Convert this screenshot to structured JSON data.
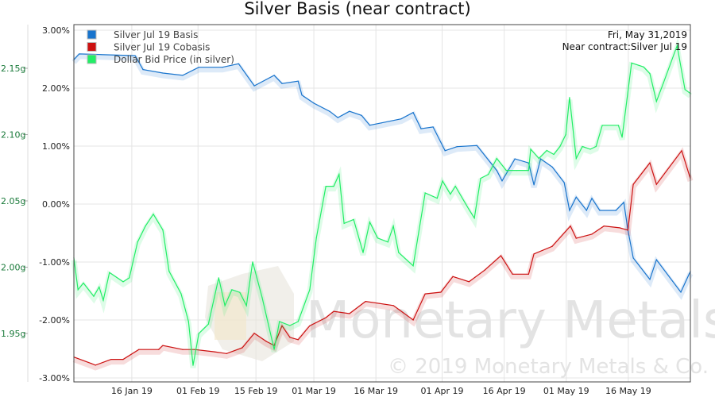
{
  "chart_data": {
    "type": "line",
    "title": "Silver Basis (near contract)",
    "annotation": [
      "Fri, May 31,2019",
      "Near contract:Silver Jul 19"
    ],
    "watermark": "Monetary Metals",
    "copyright": "© 2019 Monetary Metals & Co.",
    "x_unit": "day_of_year_2019",
    "xlim": [
      2,
      151
    ],
    "x_ticks": [
      {
        "day": 16,
        "label": "16 Jan 19"
      },
      {
        "day": 32,
        "label": "01 Feb 19"
      },
      {
        "day": 46,
        "label": "15 Feb 19"
      },
      {
        "day": 60,
        "label": "01 Mar 19"
      },
      {
        "day": 75,
        "label": "16 Mar 19"
      },
      {
        "day": 91,
        "label": "01 Apr 19"
      },
      {
        "day": 106,
        "label": "16 Apr 19"
      },
      {
        "day": 121,
        "label": "01 May 19"
      },
      {
        "day": 136,
        "label": "16 May 19"
      }
    ],
    "y_pct": {
      "ylim": [
        -3,
        3
      ],
      "ticks": [
        3,
        2,
        1,
        0,
        -1,
        -2,
        -3
      ],
      "labels": [
        "3.00%",
        "2.00%",
        "1.00%",
        "0.00%",
        "-1.00%",
        "-2.00%",
        "-3.00%"
      ]
    },
    "y_grams": {
      "ylim": [
        1.9232,
        2.1817
      ],
      "ticks": [
        2.15,
        2.1,
        2.05,
        2.0,
        1.95
      ],
      "labels": [
        "2.15g",
        "2.10g",
        "2.05g",
        "2.00g",
        "1.95g"
      ]
    },
    "legend_position": "top-left",
    "series": [
      {
        "name": "Silver Jul 19 Basis",
        "color": "#1874cd",
        "axis": "pct",
        "points": [
          [
            2,
            2.49
          ],
          [
            3.3,
            2.59
          ],
          [
            16.8,
            2.56
          ],
          [
            18.7,
            2.32
          ],
          [
            23.5,
            2.26
          ],
          [
            28.3,
            2.22
          ],
          [
            32.2,
            2.36
          ],
          [
            37.9,
            2.36
          ],
          [
            41.8,
            2.42
          ],
          [
            45.6,
            2.04
          ],
          [
            48.5,
            2.15
          ],
          [
            50.4,
            2.22
          ],
          [
            52.3,
            2.08
          ],
          [
            56.2,
            2.12
          ],
          [
            57.1,
            1.88
          ],
          [
            60,
            1.74
          ],
          [
            63.8,
            1.6
          ],
          [
            65.8,
            1.49
          ],
          [
            68.6,
            1.6
          ],
          [
            71.5,
            1.53
          ],
          [
            73.5,
            1.36
          ],
          [
            76.3,
            1.4
          ],
          [
            81.1,
            1.47
          ],
          [
            84,
            1.58
          ],
          [
            85.9,
            1.3
          ],
          [
            88.8,
            1.33
          ],
          [
            91.7,
            0.92
          ],
          [
            94.6,
            0.99
          ],
          [
            99.4,
            1.01
          ],
          [
            101.3,
            0.84
          ],
          [
            104.2,
            0.58
          ],
          [
            105.5,
            0.4
          ],
          [
            108.6,
            0.78
          ],
          [
            111.9,
            0.71
          ],
          [
            113.2,
            0.33
          ],
          [
            114.8,
            0.78
          ],
          [
            117.6,
            0.64
          ],
          [
            120.5,
            0.37
          ],
          [
            121.8,
            -0.11
          ],
          [
            123.4,
            0.12
          ],
          [
            125.9,
            -0.11
          ],
          [
            127.2,
            0.1
          ],
          [
            129.1,
            -0.11
          ],
          [
            133,
            -0.11
          ],
          [
            134.9,
            0.03
          ],
          [
            135.9,
            -0.45
          ],
          [
            137.2,
            -0.93
          ],
          [
            141.2,
            -1.3
          ],
          [
            142.8,
            -0.96
          ],
          [
            148.7,
            -1.52
          ],
          [
            151,
            -1.16
          ]
        ]
      },
      {
        "name": "Silver Jul 19 Cobasis",
        "color": "#cc1111",
        "axis": "pct",
        "points": [
          [
            2,
            -2.64
          ],
          [
            6.2,
            -2.75
          ],
          [
            7.2,
            -2.78
          ],
          [
            11,
            -2.68
          ],
          [
            13.9,
            -2.68
          ],
          [
            17.7,
            -2.51
          ],
          [
            22.5,
            -2.51
          ],
          [
            23.5,
            -2.44
          ],
          [
            28.3,
            -2.51
          ],
          [
            31.2,
            -2.51
          ],
          [
            36,
            -2.55
          ],
          [
            38.9,
            -2.58
          ],
          [
            42.7,
            -2.48
          ],
          [
            45.6,
            -2.23
          ],
          [
            48.5,
            -2.37
          ],
          [
            50.4,
            -2.44
          ],
          [
            52.3,
            -2.1
          ],
          [
            54.2,
            -2.3
          ],
          [
            56.2,
            -2.34
          ],
          [
            59,
            -2.1
          ],
          [
            62.9,
            -1.96
          ],
          [
            64.8,
            -1.85
          ],
          [
            68.6,
            -1.89
          ],
          [
            72.5,
            -1.68
          ],
          [
            79.2,
            -1.75
          ],
          [
            84,
            -2.0
          ],
          [
            86.9,
            -1.55
          ],
          [
            90.7,
            -1.52
          ],
          [
            93.6,
            -1.25
          ],
          [
            97.5,
            -1.34
          ],
          [
            101.3,
            -1.14
          ],
          [
            105.2,
            -0.89
          ],
          [
            108,
            -1.21
          ],
          [
            111.9,
            -1.21
          ],
          [
            113.2,
            -0.86
          ],
          [
            117.6,
            -0.73
          ],
          [
            122,
            -0.38
          ],
          [
            123.4,
            -0.59
          ],
          [
            127.2,
            -0.52
          ],
          [
            130.1,
            -0.38
          ],
          [
            133.9,
            -0.41
          ],
          [
            135.9,
            -0.45
          ],
          [
            137.2,
            0.34
          ],
          [
            141.2,
            0.71
          ],
          [
            142.8,
            0.34
          ],
          [
            148.9,
            0.92
          ],
          [
            151,
            0.44
          ]
        ]
      },
      {
        "name": "Dollar Bid Price (in silver)",
        "color": "#22ee66",
        "axis": "grams",
        "points": [
          [
            2,
            2.007
          ],
          [
            3,
            1.983
          ],
          [
            4.3,
            1.988
          ],
          [
            6.8,
            1.978
          ],
          [
            8.1,
            1.985
          ],
          [
            9.1,
            1.975
          ],
          [
            10.6,
            1.996
          ],
          [
            13.9,
            1.989
          ],
          [
            15.4,
            1.992
          ],
          [
            17.4,
            2.019
          ],
          [
            19.3,
            2.031
          ],
          [
            21.2,
            2.04
          ],
          [
            23.5,
            2.028
          ],
          [
            25,
            1.997
          ],
          [
            27.9,
            1.98
          ],
          [
            29.7,
            1.959
          ],
          [
            30.8,
            1.926
          ],
          [
            32.2,
            1.95
          ],
          [
            34.5,
            1.957
          ],
          [
            37,
            1.992
          ],
          [
            38.5,
            1.971
          ],
          [
            40.2,
            1.983
          ],
          [
            42.1,
            1.981
          ],
          [
            43.7,
            1.971
          ],
          [
            45.2,
            2.004
          ],
          [
            47.5,
            1.977
          ],
          [
            50.4,
            1.938
          ],
          [
            51.7,
            1.959
          ],
          [
            54.2,
            1.956
          ],
          [
            56.2,
            1.959
          ],
          [
            59,
            1.983
          ],
          [
            60.6,
            2.022
          ],
          [
            62.9,
            2.061
          ],
          [
            64.8,
            2.061
          ],
          [
            66.1,
            2.07
          ],
          [
            67.3,
            2.033
          ],
          [
            69.6,
            2.036
          ],
          [
            71.9,
            2.011
          ],
          [
            73.5,
            2.034
          ],
          [
            75.4,
            2.022
          ],
          [
            77.9,
            2.019
          ],
          [
            79.2,
            2.031
          ],
          [
            80.5,
            2.011
          ],
          [
            84,
            2.001
          ],
          [
            86.9,
            2.056
          ],
          [
            89.8,
            2.052
          ],
          [
            91.1,
            2.065
          ],
          [
            93,
            2.055
          ],
          [
            94.2,
            2.061
          ],
          [
            97.4,
            2.044
          ],
          [
            98.8,
            2.037
          ],
          [
            100.3,
            2.067
          ],
          [
            102.2,
            2.07
          ],
          [
            104.2,
            2.082
          ],
          [
            106.5,
            2.073
          ],
          [
            109,
            2.073
          ],
          [
            111.9,
            2.073
          ],
          [
            112.4,
            2.089
          ],
          [
            114.4,
            2.082
          ],
          [
            116.3,
            2.088
          ],
          [
            118,
            2.085
          ],
          [
            119.5,
            2.091
          ],
          [
            120.9,
            2.1
          ],
          [
            121.8,
            2.128
          ],
          [
            123.4,
            2.082
          ],
          [
            124.9,
            2.091
          ],
          [
            126.8,
            2.089
          ],
          [
            128.2,
            2.091
          ],
          [
            129.7,
            2.107
          ],
          [
            133.6,
            2.107
          ],
          [
            134.5,
            2.098
          ],
          [
            136.8,
            2.154
          ],
          [
            139.7,
            2.151
          ],
          [
            141.2,
            2.146
          ],
          [
            142.8,
            2.125
          ],
          [
            144.5,
            2.139
          ],
          [
            147.8,
            2.167
          ],
          [
            149.7,
            2.134
          ],
          [
            151,
            2.131
          ]
        ]
      }
    ]
  }
}
